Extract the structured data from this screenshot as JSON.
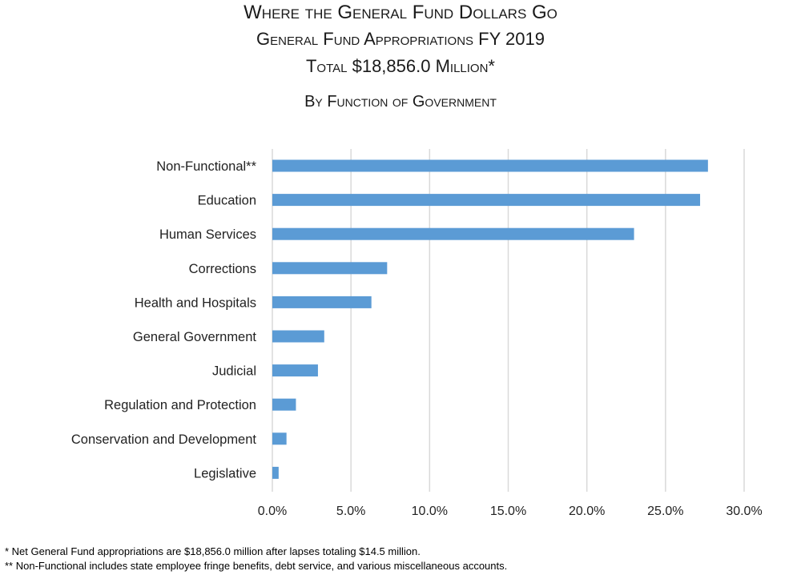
{
  "titles": {
    "line1": "Where the General Fund Dollars Go",
    "line2": "General Fund Appropriations FY 2019",
    "line3": "Total $18,856.0 Million*",
    "line4": "By Function of Government"
  },
  "chart_data": {
    "type": "bar",
    "orientation": "horizontal",
    "categories": [
      "Non-Functional**",
      "Education",
      "Human Services",
      "Corrections",
      "Health and Hospitals",
      "General Government",
      "Judicial",
      "Regulation and Protection",
      "Conservation and Development",
      "Legislative"
    ],
    "values": [
      27.7,
      27.2,
      23.0,
      7.3,
      6.3,
      3.3,
      2.9,
      1.5,
      0.9,
      0.4
    ],
    "xlim": [
      0,
      30
    ],
    "x_ticks": [
      "0.0%",
      "5.0%",
      "10.0%",
      "15.0%",
      "20.0%",
      "25.0%",
      "30.0%"
    ],
    "x_tick_values": [
      0,
      5,
      10,
      15,
      20,
      25,
      30
    ],
    "grid": "vertical",
    "bar_color": "#5b9bd5",
    "grid_color": "#d9d9d9"
  },
  "footnotes": {
    "note1": "*  Net General Fund appropriations are $18,856.0 million after lapses totaling $14.5 million.",
    "note2": "** Non-Functional includes state employee fringe benefits, debt service, and various miscellaneous accounts."
  }
}
